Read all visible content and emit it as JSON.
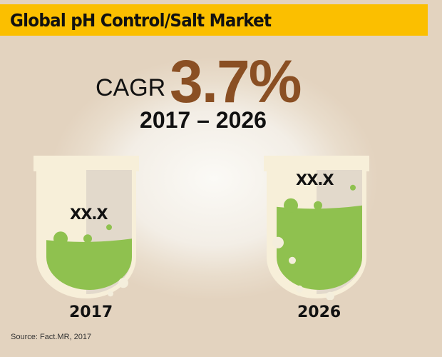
{
  "title": "Global pH Control/Salt Market",
  "cagr": {
    "label": "CAGR",
    "value": "3.7%",
    "period": "2017 – 2026"
  },
  "beakers": [
    {
      "year": "2017",
      "value": "XX.X",
      "fill_level": 0.42
    },
    {
      "year": "2026",
      "value": "XX.X",
      "fill_level": 0.7
    }
  ],
  "source": "Source: Fact.MR, 2017",
  "colors": {
    "title_bar": "#fbbf00",
    "cagr_value": "#8a4f23",
    "liquid": "#8fc14f"
  }
}
